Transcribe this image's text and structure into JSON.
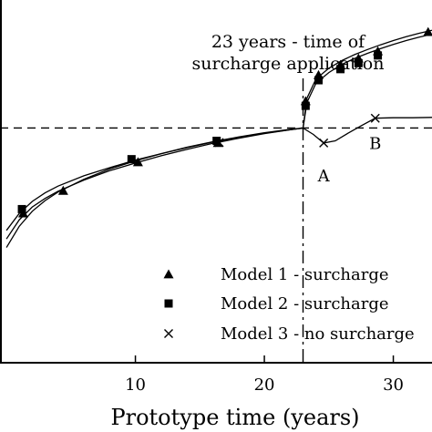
{
  "chart_data": {
    "type": "line",
    "xlabel": "Prototype time (years)",
    "ylabel": "",
    "xlim": [
      -0.5,
      33
    ],
    "ylim": [
      -0.55,
      0.3
    ],
    "x_ticks": [
      10,
      20,
      30
    ],
    "x_tick_labels": [
      "10",
      "20",
      "30"
    ],
    "grid": false,
    "legend_placement": "bottom-right",
    "reference_lines": {
      "horizontal_dashed_y": 0,
      "vertical_dashdot_x": 23
    },
    "annotation": {
      "x": 23,
      "lines": [
        "23 years - time of",
        "surcharge application"
      ]
    },
    "point_labels": [
      {
        "text": "A",
        "x": 24.6,
        "y": -0.052
      },
      {
        "text": "B",
        "x": 28.6,
        "y": 0.023
      }
    ],
    "series": [
      {
        "name": "Model 1 - surcharge",
        "marker": "triangle",
        "x": [
          0,
          1,
          2,
          3,
          4,
          6,
          8,
          10,
          12,
          14,
          16,
          18,
          20,
          22,
          23,
          23.3,
          24,
          25,
          26,
          27,
          28,
          29,
          30,
          31,
          32,
          33
        ],
        "y": [
          -0.26,
          -0.215,
          -0.185,
          -0.165,
          -0.148,
          -0.122,
          -0.1,
          -0.082,
          -0.065,
          -0.05,
          -0.036,
          -0.024,
          -0.013,
          -0.004,
          0,
          0.07,
          0.115,
          0.14,
          0.158,
          0.172,
          0.184,
          0.195,
          0.205,
          0.214,
          0.222,
          0.229
        ],
        "marker_x": [
          1.3,
          4.4,
          10.2,
          16.4,
          23.2,
          24.2,
          25.9,
          27.3,
          28.8,
          32.7
        ],
        "marker_y": [
          -0.2,
          -0.147,
          -0.08,
          -0.035,
          0.063,
          0.124,
          0.148,
          0.163,
          0.18,
          0.225
        ]
      },
      {
        "name": "Model 2 - surcharge",
        "marker": "square",
        "x": [
          0,
          1,
          2,
          3,
          4,
          6,
          8,
          10,
          12,
          14,
          16,
          18,
          20,
          22,
          23,
          23.3,
          24,
          25,
          26,
          27,
          28,
          29,
          30,
          31,
          32,
          33
        ],
        "y": [
          -0.24,
          -0.2,
          -0.172,
          -0.152,
          -0.136,
          -0.112,
          -0.093,
          -0.075,
          -0.06,
          -0.046,
          -0.033,
          -0.022,
          -0.012,
          -0.004,
          0,
          0.06,
          0.105,
          0.13,
          0.149,
          0.163,
          0.175,
          0.186,
          0.196,
          0.205,
          0.213,
          0.22
        ],
        "marker_x": [
          1.2,
          9.7,
          16.3,
          23.2,
          24.2,
          25.9,
          27.3,
          28.8
        ],
        "marker_y": [
          -0.19,
          -0.073,
          -0.03,
          0.052,
          0.112,
          0.138,
          0.152,
          0.17
        ]
      },
      {
        "name": "Model 3 - no surcharge",
        "marker": "cross",
        "x": [
          0,
          1,
          2,
          3,
          4,
          6,
          8,
          10,
          12,
          14,
          16,
          18,
          20,
          22,
          23,
          23.8,
          24.6,
          25.5,
          26.5,
          27.5,
          28.6,
          30,
          31.5,
          33
        ],
        "y": [
          -0.28,
          -0.23,
          -0.195,
          -0.17,
          -0.15,
          -0.12,
          -0.096,
          -0.077,
          -0.06,
          -0.045,
          -0.032,
          -0.021,
          -0.011,
          -0.003,
          0,
          -0.015,
          -0.035,
          -0.03,
          -0.012,
          0.005,
          0.023,
          0.024,
          0.024,
          0.025
        ],
        "marker_x": [
          16.5,
          24.6,
          28.6
        ],
        "marker_y": [
          -0.034,
          -0.035,
          0.023
        ]
      }
    ]
  }
}
